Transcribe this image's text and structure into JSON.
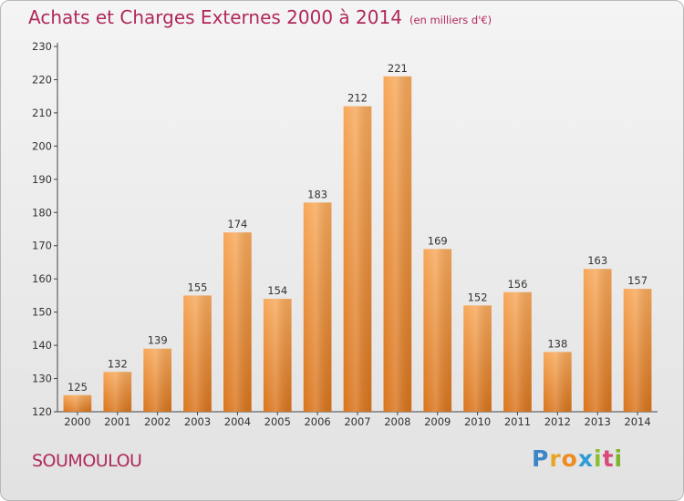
{
  "header": {
    "title": "Achats et Charges Externes 2000 à 2014",
    "unit": "(en milliers d'€)"
  },
  "footer": {
    "city": "SOUMOULOU",
    "logo_letters": [
      "P",
      "r",
      "o",
      "x",
      "i",
      "t",
      "i"
    ]
  },
  "colors": {
    "title": "#b0285c",
    "bar_light": "#f7a85a",
    "bar_dark": "#d9741c"
  },
  "chart_data": {
    "type": "bar",
    "title": "Achats et Charges Externes 2000 à 2014",
    "subtitle": "(en milliers d'€)",
    "categories": [
      "2000",
      "2001",
      "2002",
      "2003",
      "2004",
      "2005",
      "2006",
      "2007",
      "2008",
      "2009",
      "2010",
      "2011",
      "2012",
      "2013",
      "2014"
    ],
    "values": [
      125,
      132,
      139,
      155,
      174,
      154,
      183,
      212,
      221,
      169,
      152,
      156,
      138,
      163,
      157
    ],
    "yticks": [
      120,
      130,
      140,
      150,
      160,
      170,
      180,
      190,
      200,
      210,
      220,
      230
    ],
    "ylim": [
      120,
      230
    ],
    "xlabel": "",
    "ylabel": "",
    "grid": false
  }
}
